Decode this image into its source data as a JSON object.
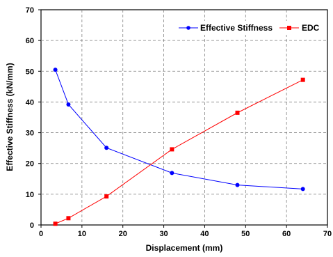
{
  "chart_data": {
    "type": "line",
    "title": "",
    "xlabel": "Displacement (mm)",
    "ylabel": "Effective Stiffness (kN/mm)",
    "xlim": [
      0,
      70
    ],
    "ylim": [
      0,
      70
    ],
    "x_ticks": [
      "0",
      "10",
      "20",
      "30",
      "40",
      "50",
      "60",
      "70"
    ],
    "y_ticks": [
      "0",
      "10",
      "20",
      "30",
      "40",
      "50",
      "60",
      "70"
    ],
    "grid": true,
    "legend_position": "top-right",
    "series": [
      {
        "name": "Effective Stiffness",
        "color": "#0000ff",
        "marker": "circle",
        "x": [
          3.5,
          6.7,
          16.0,
          32.0,
          48.0,
          64.0
        ],
        "y": [
          50.5,
          39.2,
          25.1,
          16.9,
          13.0,
          11.7
        ]
      },
      {
        "name": "EDC",
        "color": "#ff0000",
        "marker": "square",
        "x": [
          3.5,
          6.7,
          16.0,
          32.0,
          48.0,
          64.0
        ],
        "y": [
          0.4,
          2.2,
          9.3,
          24.6,
          36.5,
          47.2
        ]
      }
    ]
  }
}
